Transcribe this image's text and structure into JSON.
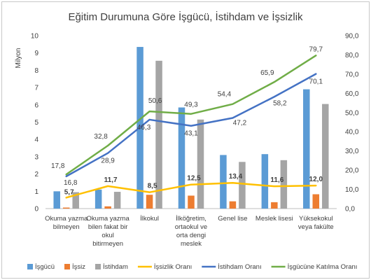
{
  "chart_data": {
    "type": "bar",
    "title": "Eğitim Durumuna Göre İşgücü, İstihdam ve İşsizlik",
    "ylabel_left": "Milyon",
    "ylim_left": [
      0,
      10
    ],
    "yticks_left": [
      "0",
      "1",
      "2",
      "3",
      "4",
      "5",
      "6",
      "7",
      "8",
      "9",
      "10"
    ],
    "ylim_right": [
      0,
      90
    ],
    "yticks_right": [
      "0,0",
      "10,0",
      "20,0",
      "30,0",
      "40,0",
      "50,0",
      "60,0",
      "70,0",
      "80,0",
      "90,0"
    ],
    "categories": [
      [
        "Okuma yazma",
        "bilmeyen"
      ],
      [
        "Okuma yazma",
        "bilen fakat bir",
        "okul",
        "bitirmeyen"
      ],
      [
        "İlkokul"
      ],
      [
        "İlköğretim,",
        "ortaokul ve",
        "orta dengi",
        "meslek"
      ],
      [
        "Genel lise"
      ],
      [
        "Meslek lisesi"
      ],
      [
        "Yüksekokul",
        "veya fakülte"
      ]
    ],
    "bar_series": [
      {
        "name": "İşgücü",
        "color": "#5b9bd5",
        "values": [
          1.0,
          1.1,
          9.35,
          5.85,
          3.1,
          3.15,
          6.9
        ]
      },
      {
        "name": "İşsiz",
        "color": "#ed7d31",
        "values": [
          0.06,
          0.13,
          0.8,
          0.75,
          0.42,
          0.37,
          0.83
        ]
      },
      {
        "name": "İstihdam",
        "color": "#a5a5a5",
        "values": [
          0.95,
          0.97,
          8.55,
          5.15,
          2.7,
          2.8,
          6.05
        ]
      }
    ],
    "line_series": [
      {
        "name": "İşsizlik Oranı",
        "color": "#ffc000",
        "values": [
          5.7,
          11.7,
          8.5,
          12.5,
          13.4,
          11.6,
          12.0
        ],
        "labels": [
          "5,7",
          "11,7",
          "8,5",
          "12,5",
          "13,4",
          "11,6",
          "12,0"
        ],
        "bold": true
      },
      {
        "name": "İstihdam Oranı",
        "color": "#4472c4",
        "values": [
          16.8,
          28.9,
          46.3,
          43.1,
          47.2,
          58.2,
          70.1
        ],
        "labels": [
          "16,8",
          "28,9",
          "46,3",
          "43,1",
          "47,2",
          "58,2",
          "70,1"
        ],
        "bold": false
      },
      {
        "name": "İşgücüne Katılma Oranı",
        "color": "#70ad47",
        "values": [
          17.8,
          32.8,
          50.6,
          49.3,
          54.4,
          65.9,
          79.7
        ],
        "labels": [
          "17,8",
          "32,8",
          "50,6",
          "49,3",
          "54,4",
          "65,9",
          "79,7"
        ],
        "bold": false
      }
    ],
    "legend_position": "bottom",
    "grid": false
  }
}
